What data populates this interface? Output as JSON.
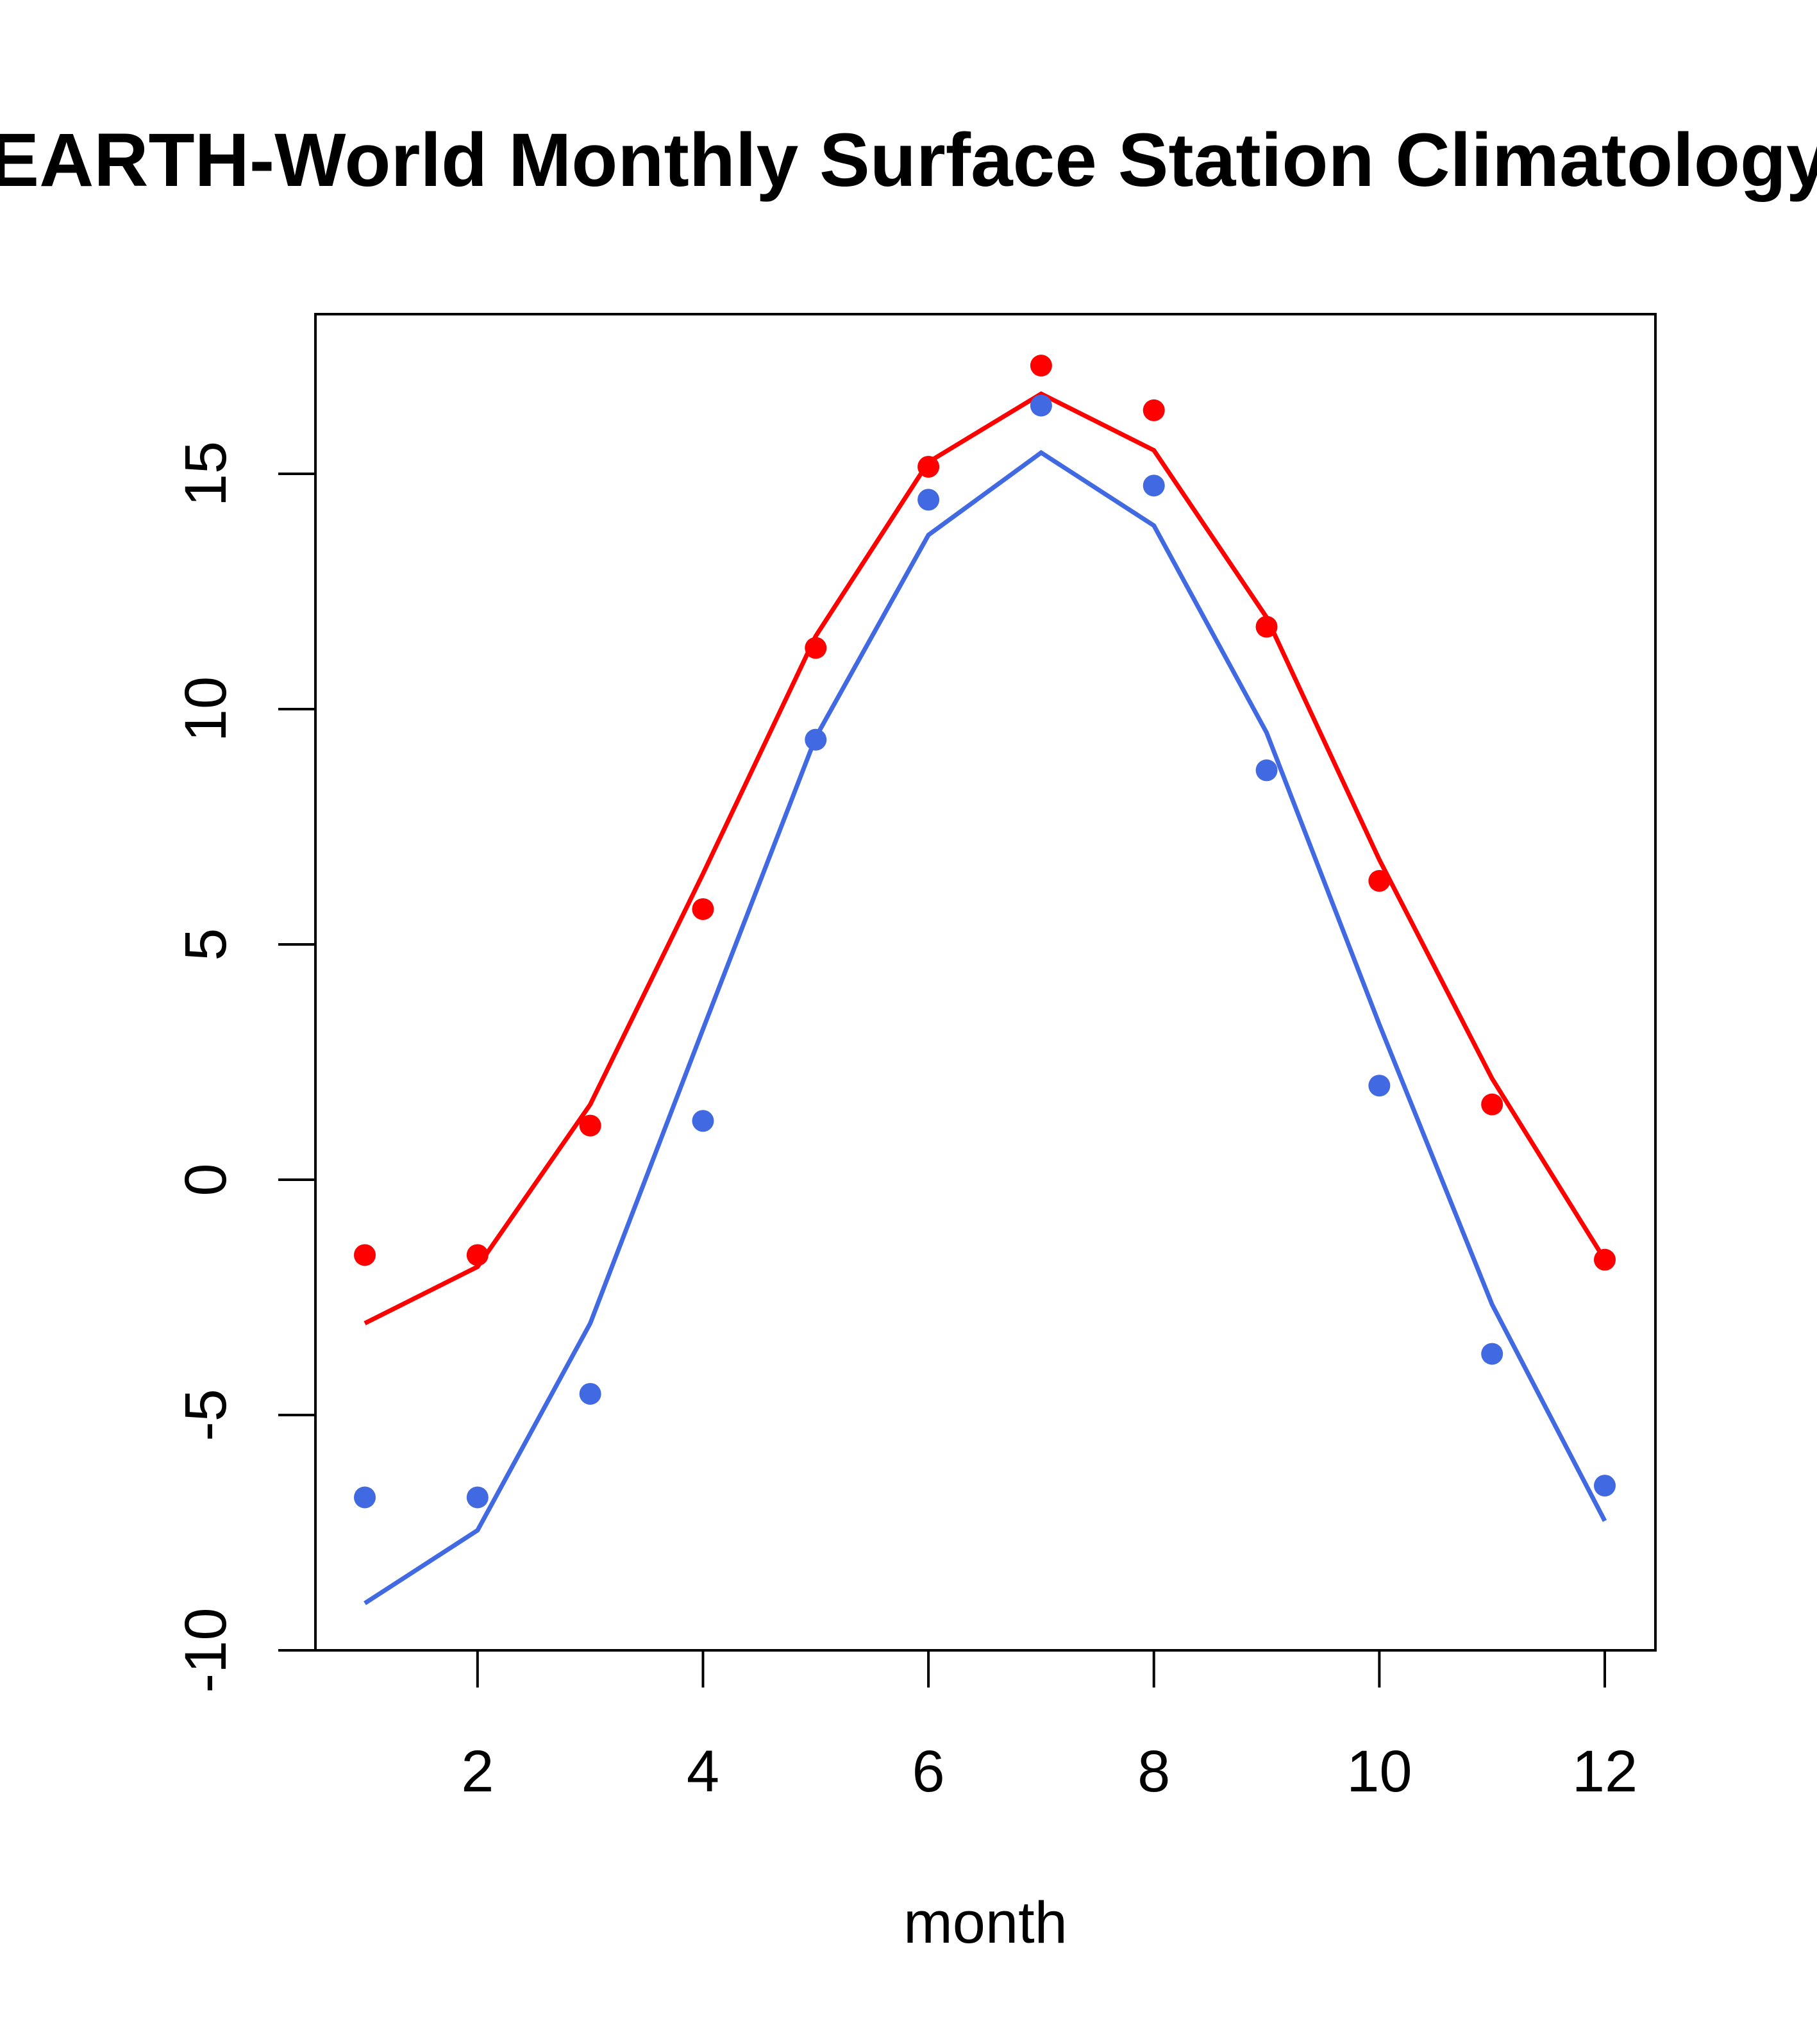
{
  "chart_data": {
    "type": "line",
    "title": "EARTH-World Monthly Surface Station Climatology",
    "xlabel": "month",
    "ylabel": "",
    "xlim": [
      0.55,
      12.45
    ],
    "ylim": [
      -10,
      18.4
    ],
    "x_ticks": [
      2,
      4,
      6,
      8,
      10,
      12
    ],
    "x_tick_labels": [
      "2",
      "4",
      "6",
      "8",
      "10",
      "12"
    ],
    "y_ticks": [
      -10,
      -5,
      0,
      5,
      10,
      15
    ],
    "y_tick_labels": [
      "-10",
      "-5",
      "0",
      "5",
      "10",
      "15"
    ],
    "grid": false,
    "legend": null,
    "x": [
      1,
      2,
      3,
      4,
      5,
      6,
      7,
      8,
      9,
      10,
      11,
      12
    ],
    "series": [
      {
        "name": "red-points",
        "kind": "points",
        "color": "#ff0000",
        "values": [
          -1.6,
          -1.6,
          1.15,
          5.75,
          11.3,
          15.15,
          17.3,
          16.35,
          11.75,
          6.35,
          1.6,
          -1.7
        ]
      },
      {
        "name": "red-line",
        "kind": "line",
        "color": "#ff0000",
        "values": [
          -3.05,
          -1.85,
          1.6,
          6.5,
          11.55,
          15.25,
          16.7,
          15.5,
          11.95,
          6.8,
          2.15,
          -1.7
        ]
      },
      {
        "name": "blue-points",
        "kind": "points",
        "color": "#4169e1",
        "values": [
          -6.75,
          -6.75,
          -4.55,
          1.25,
          9.35,
          14.45,
          16.45,
          14.75,
          8.7,
          2.0,
          -3.7,
          -6.5
        ]
      },
      {
        "name": "blue-line",
        "kind": "line",
        "color": "#4169e1",
        "values": [
          -9.0,
          -7.45,
          -3.05,
          3.2,
          9.4,
          13.7,
          15.45,
          13.9,
          9.5,
          3.3,
          -2.65,
          -7.25
        ]
      }
    ]
  }
}
